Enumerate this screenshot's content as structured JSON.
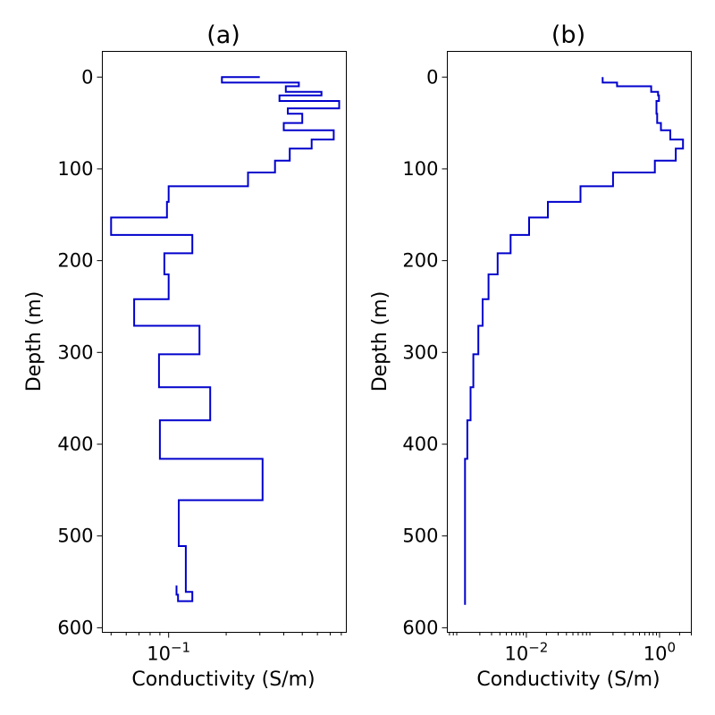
{
  "chart_data": [
    {
      "type": "line",
      "step": "depth-profile",
      "title": "(a)",
      "xlabel": "Conductivity (S/m)",
      "ylabel": "Depth (m)",
      "xscale": "log",
      "xlim": [
        0.045,
        0.85
      ],
      "ylim": [
        605,
        -28
      ],
      "yinverted": true,
      "yticks": [
        0,
        100,
        200,
        300,
        400,
        500,
        600
      ],
      "ytick_labels": [
        "0",
        "100",
        "200",
        "300",
        "400",
        "500",
        "600"
      ],
      "xticks": [
        0.1
      ],
      "xtick_labels": [
        {
          "base": "10",
          "exp": "−1"
        }
      ],
      "color": "#0000cc",
      "series": [
        {
          "x": [
            0.3,
            0.19,
            0.19,
            0.48,
            0.48,
            0.41,
            0.41,
            0.63,
            0.63,
            0.38,
            0.38,
            0.78,
            0.78,
            0.42,
            0.42,
            0.5,
            0.5,
            0.4,
            0.4,
            0.73,
            0.73,
            0.56,
            0.56,
            0.43,
            0.43,
            0.36,
            0.36,
            0.26,
            0.26,
            0.1,
            0.1,
            0.098,
            0.098,
            0.05,
            0.05,
            0.133,
            0.133,
            0.095,
            0.095,
            0.1,
            0.1,
            0.066,
            0.066,
            0.145,
            0.145,
            0.089,
            0.089,
            0.165,
            0.165,
            0.09,
            0.09,
            0.31,
            0.31,
            0.113,
            0.113,
            0.123,
            0.123,
            0.133,
            0.133,
            0.112,
            0.112,
            0.11,
            0.11
          ],
          "y": [
            0,
            0,
            6,
            6,
            10,
            10,
            16,
            16,
            20,
            20,
            26,
            26,
            34,
            34,
            40,
            40,
            50,
            50,
            58,
            58,
            68,
            68,
            78,
            78,
            91,
            91,
            104,
            104,
            119,
            119,
            136,
            136,
            153,
            153,
            172,
            172,
            192,
            192,
            215,
            215,
            242,
            242,
            271,
            271,
            302,
            302,
            338,
            338,
            374,
            374,
            416,
            416,
            461,
            461,
            511,
            511,
            561,
            561,
            571,
            571,
            564,
            564,
            554
          ]
        }
      ]
    },
    {
      "type": "line",
      "step": "depth-profile",
      "title": "(b)",
      "xlabel": "Conductivity (S/m)",
      "ylabel": "Depth (m)",
      "xscale": "log",
      "xlim": [
        0.00065,
        3.0
      ],
      "ylim": [
        605,
        -28
      ],
      "yinverted": true,
      "yticks": [
        0,
        100,
        200,
        300,
        400,
        500,
        600
      ],
      "ytick_labels": [
        "0",
        "100",
        "200",
        "300",
        "400",
        "500",
        "600"
      ],
      "xticks": [
        0.01,
        1
      ],
      "xtick_labels": [
        {
          "base": "10",
          "exp": "−2"
        },
        {
          "base": "10",
          "exp": "0"
        }
      ],
      "color": "#0000cc",
      "series": [
        {
          "x": [
            0.14,
            0.14,
            0.23,
            0.23,
            0.75,
            0.75,
            0.95,
            0.95,
            0.98,
            0.98,
            0.9,
            0.9,
            0.92,
            0.92,
            1.05,
            1.05,
            1.45,
            1.45,
            2.25,
            2.25,
            1.75,
            1.75,
            0.85,
            0.85,
            0.2,
            0.2,
            0.065,
            0.065,
            0.021,
            0.021,
            0.011,
            0.011,
            0.0058,
            0.0058,
            0.0037,
            0.0037,
            0.0027,
            0.0027,
            0.0022,
            0.0022,
            0.0019,
            0.0019,
            0.0016,
            0.0016,
            0.00145,
            0.00145,
            0.0013,
            0.0013,
            0.0012,
            0.0012
          ],
          "y": [
            0,
            6,
            6,
            10,
            10,
            16,
            16,
            20,
            20,
            26,
            26,
            40,
            40,
            50,
            50,
            58,
            58,
            68,
            68,
            78,
            78,
            91,
            91,
            104,
            104,
            119,
            119,
            136,
            136,
            153,
            153,
            172,
            172,
            192,
            192,
            215,
            215,
            242,
            242,
            271,
            271,
            302,
            302,
            338,
            338,
            374,
            374,
            416,
            416,
            575
          ]
        }
      ]
    }
  ]
}
